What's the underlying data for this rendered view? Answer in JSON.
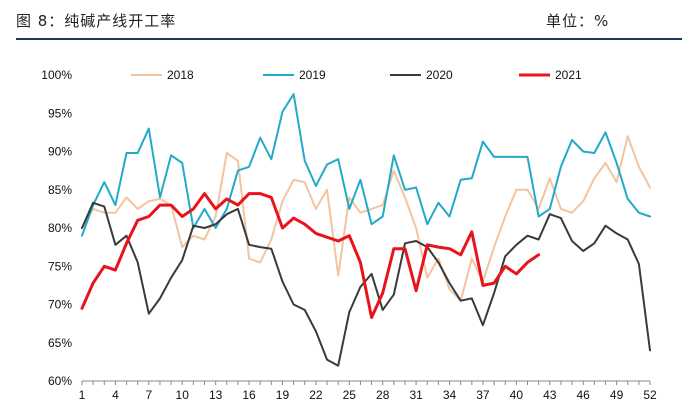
{
  "header": {
    "figure_title": "图 8：纯碱产线开工率",
    "unit_label": "单位：%"
  },
  "chart_data": {
    "type": "line",
    "title": "",
    "xlabel": "",
    "ylabel": "",
    "ylim": [
      60,
      100
    ],
    "y_ticks": [
      60,
      65,
      70,
      75,
      80,
      85,
      90,
      95,
      100
    ],
    "y_tick_labels": [
      "60%",
      "65%",
      "70%",
      "75%",
      "80%",
      "85%",
      "90%",
      "95%",
      "100%"
    ],
    "x_ticks": [
      1,
      4,
      7,
      10,
      13,
      16,
      19,
      22,
      25,
      28,
      31,
      34,
      37,
      40,
      43,
      46,
      49,
      52
    ],
    "grid": false,
    "legend": "top",
    "series": [
      {
        "name": "2018",
        "color": "#f2c4a0",
        "width": 2,
        "x": [
          1,
          2,
          3,
          4,
          5,
          6,
          7,
          8,
          9,
          10,
          11,
          12,
          13,
          14,
          15,
          16,
          17,
          18,
          19,
          20,
          21,
          22,
          23,
          24,
          25,
          26,
          27,
          28,
          29,
          30,
          31,
          32,
          33,
          34,
          35,
          36,
          37,
          38,
          39,
          40,
          41,
          42,
          43,
          44,
          45,
          46,
          47,
          48,
          49,
          50,
          51,
          52
        ],
        "values": [
          80.0,
          82.5,
          82.0,
          82.0,
          84.0,
          82.5,
          83.5,
          83.8,
          83.0,
          77.5,
          79.0,
          78.5,
          81.5,
          89.8,
          88.8,
          76.0,
          75.5,
          78.5,
          83.5,
          86.3,
          86.0,
          82.5,
          85.0,
          73.8,
          84.0,
          82.0,
          82.5,
          83.0,
          87.5,
          84.0,
          80.0,
          73.5,
          76.0,
          72.0,
          70.5,
          76.0,
          73.0,
          77.5,
          81.5,
          85.0,
          85.0,
          82.5,
          86.5,
          82.5,
          82.0,
          83.5,
          86.5,
          88.5,
          86.0,
          92.0,
          88.0,
          85.3
        ]
      },
      {
        "name": "2019",
        "color": "#23a9c9",
        "width": 2,
        "x": [
          1,
          2,
          3,
          4,
          5,
          6,
          7,
          8,
          9,
          10,
          11,
          12,
          13,
          14,
          15,
          16,
          17,
          18,
          19,
          20,
          21,
          22,
          23,
          24,
          25,
          26,
          27,
          28,
          29,
          30,
          31,
          32,
          33,
          34,
          35,
          36,
          37,
          38,
          39,
          40,
          41,
          42,
          43,
          44,
          45,
          46,
          47,
          48,
          49,
          50,
          51,
          52
        ],
        "values": [
          79.0,
          83.0,
          86.0,
          83.0,
          89.8,
          89.8,
          93.0,
          84.0,
          89.5,
          88.5,
          80.0,
          82.5,
          80.0,
          82.5,
          87.5,
          88.0,
          91.8,
          89.0,
          95.2,
          97.5,
          88.8,
          85.5,
          88.3,
          89.0,
          82.5,
          86.3,
          80.5,
          81.5,
          89.5,
          85.0,
          85.3,
          80.5,
          83.3,
          81.5,
          86.3,
          86.5,
          91.3,
          89.3,
          89.3,
          89.3,
          89.3,
          81.5,
          82.5,
          88.0,
          91.5,
          90.0,
          89.8,
          92.5,
          88.5,
          83.8,
          82.0,
          81.5
        ]
      },
      {
        "name": "2020",
        "color": "#3a3a3a",
        "width": 2,
        "x": [
          1,
          2,
          3,
          4,
          5,
          6,
          7,
          8,
          9,
          10,
          11,
          12,
          13,
          14,
          15,
          16,
          17,
          18,
          19,
          20,
          21,
          22,
          23,
          24,
          25,
          26,
          27,
          28,
          29,
          30,
          31,
          32,
          33,
          34,
          35,
          36,
          37,
          38,
          39,
          40,
          41,
          42,
          43,
          44,
          45,
          46,
          47,
          48,
          49,
          50,
          51,
          52
        ],
        "values": [
          80.0,
          83.3,
          82.8,
          77.8,
          79.0,
          75.5,
          68.8,
          70.8,
          73.5,
          75.8,
          80.3,
          80.0,
          80.5,
          81.8,
          82.5,
          77.8,
          77.5,
          77.3,
          73.0,
          70.0,
          69.3,
          66.5,
          62.8,
          62.0,
          69.0,
          72.3,
          74.0,
          69.3,
          71.3,
          78.0,
          78.3,
          77.5,
          75.5,
          72.8,
          70.5,
          70.8,
          67.3,
          71.5,
          76.3,
          77.8,
          79.0,
          78.5,
          81.8,
          81.3,
          78.3,
          77.0,
          78.0,
          80.3,
          79.3,
          78.5,
          75.3,
          64.0
        ]
      },
      {
        "name": "2021",
        "color": "#e8141c",
        "width": 3,
        "x": [
          1,
          2,
          3,
          4,
          5,
          6,
          7,
          8,
          9,
          10,
          11,
          12,
          13,
          14,
          15,
          16,
          17,
          18,
          19,
          20,
          21,
          22,
          23,
          24,
          25,
          26,
          27,
          28,
          29,
          30,
          31,
          32,
          33,
          34,
          35,
          36,
          37,
          38,
          39,
          40,
          41,
          42
        ],
        "values": [
          69.5,
          72.8,
          75.0,
          74.5,
          78.0,
          81.0,
          81.5,
          83.0,
          83.0,
          81.5,
          82.5,
          84.5,
          82.5,
          83.8,
          83.0,
          84.5,
          84.5,
          84.0,
          80.0,
          81.3,
          80.5,
          79.3,
          78.8,
          78.3,
          79.0,
          75.5,
          68.3,
          71.5,
          77.3,
          77.3,
          71.8,
          77.8,
          77.5,
          77.3,
          76.5,
          79.5,
          72.5,
          72.8,
          75.0,
          74.0,
          75.5,
          76.5
        ]
      }
    ]
  }
}
